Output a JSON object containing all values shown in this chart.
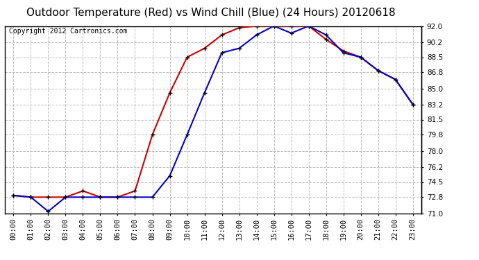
{
  "title": "Outdoor Temperature (Red) vs Wind Chill (Blue) (24 Hours) 20120618",
  "copyright": "Copyright 2012 Cartronics.com",
  "hours": [
    "00:00",
    "01:00",
    "02:00",
    "03:00",
    "04:00",
    "05:00",
    "06:00",
    "07:00",
    "08:00",
    "09:00",
    "10:00",
    "11:00",
    "12:00",
    "13:00",
    "14:00",
    "15:00",
    "16:00",
    "17:00",
    "18:00",
    "19:00",
    "20:00",
    "21:00",
    "22:00",
    "23:00"
  ],
  "temp_red": [
    73.0,
    72.8,
    72.8,
    72.8,
    73.5,
    72.8,
    72.8,
    73.5,
    79.8,
    84.5,
    88.5,
    89.5,
    91.0,
    91.8,
    92.0,
    92.0,
    92.0,
    92.0,
    90.5,
    89.2,
    88.5,
    87.0,
    86.0,
    83.2
  ],
  "wind_chill_blue": [
    73.0,
    72.8,
    71.2,
    72.8,
    72.8,
    72.8,
    72.8,
    72.8,
    72.8,
    75.2,
    79.8,
    84.5,
    89.0,
    89.5,
    91.0,
    92.0,
    91.2,
    92.0,
    91.0,
    89.0,
    88.5,
    87.0,
    86.0,
    83.2
  ],
  "ylim_min": 71.0,
  "ylim_max": 92.0,
  "yticks": [
    71.0,
    72.8,
    74.5,
    76.2,
    78.0,
    79.8,
    81.5,
    83.2,
    85.0,
    86.8,
    88.5,
    90.2,
    92.0
  ],
  "bg_color": "#ffffff",
  "plot_bg_color": "#ffffff",
  "grid_color": "#bbbbbb",
  "title_fontsize": 11,
  "copyright_fontsize": 7,
  "red_color": "#cc0000",
  "blue_color": "#0000cc",
  "marker_color": "#000000",
  "tick_fontsize": 7.5
}
